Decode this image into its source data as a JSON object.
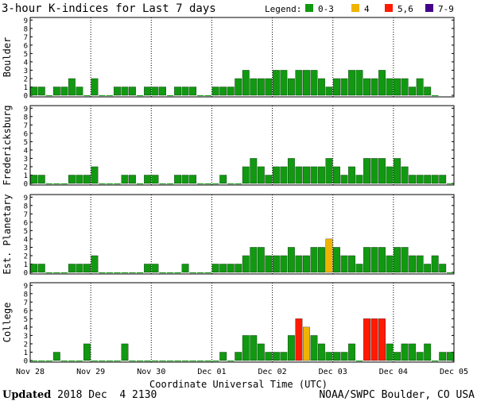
{
  "title": "3-hour K-indices for Last 7 days",
  "legend": {
    "label": "Legend:",
    "items": [
      {
        "label": "0-3",
        "color": "#119911"
      },
      {
        "label": "4",
        "color": "#f0b400"
      },
      {
        "label": "5,6",
        "color": "#ff1a00"
      },
      {
        "label": "7-9",
        "color": "#440088"
      }
    ]
  },
  "footer": {
    "updated_label": "Updated",
    "updated_value": "2018 Dec  4 2130",
    "source": "NOAA/SWPC Boulder, CO USA"
  },
  "chart_data": {
    "type": "bar",
    "xlabel": "Coordinate Universal Time (UTC)",
    "x_ticks": [
      "Nov 28",
      "Nov 29",
      "Nov 30",
      "Dec 01",
      "Dec 02",
      "Dec 03",
      "Dec 04",
      "Dec 05"
    ],
    "y_ticks": [
      "0",
      "1",
      "2",
      "3",
      "4",
      "5",
      "6",
      "7",
      "8",
      "9"
    ],
    "ylim": [
      0,
      9
    ],
    "intervals_per_day": 8,
    "days": 7,
    "panels": [
      {
        "name": "Boulder",
        "values": [
          1,
          1,
          0,
          1,
          1,
          2,
          1,
          0,
          2,
          0,
          0,
          1,
          1,
          1,
          0,
          1,
          1,
          1,
          0,
          1,
          1,
          1,
          0,
          0,
          1,
          1,
          1,
          2,
          3,
          2,
          2,
          2,
          3,
          3,
          2,
          3,
          3,
          3,
          2,
          1,
          2,
          2,
          3,
          3,
          2,
          2,
          3,
          2,
          2,
          2,
          1,
          2,
          1,
          0
        ]
      },
      {
        "name": "Fredericksburg",
        "values": [
          1,
          1,
          0,
          0,
          0,
          1,
          1,
          1,
          2,
          0,
          0,
          0,
          1,
          1,
          0,
          1,
          1,
          0,
          0,
          1,
          1,
          1,
          0,
          0,
          0,
          1,
          0,
          0,
          2,
          3,
          2,
          1,
          2,
          2,
          3,
          2,
          2,
          2,
          2,
          3,
          2,
          1,
          2,
          1,
          3,
          3,
          3,
          2,
          3,
          2,
          1,
          1,
          1,
          1,
          1,
          0
        ]
      },
      {
        "name": "Est. Planetary",
        "values": [
          1,
          1,
          0,
          0,
          0,
          1,
          1,
          1,
          2,
          0,
          0,
          0,
          0,
          0,
          0,
          1,
          1,
          0,
          0,
          0,
          1,
          0,
          0,
          0,
          1,
          1,
          1,
          1,
          2,
          3,
          3,
          2,
          2,
          2,
          3,
          2,
          2,
          3,
          3,
          4,
          3,
          2,
          2,
          1,
          3,
          3,
          3,
          2,
          3,
          3,
          2,
          2,
          1,
          2,
          1,
          0
        ]
      },
      {
        "name": "College",
        "values": [
          0,
          0,
          0,
          1,
          0,
          0,
          0,
          2,
          0,
          0,
          0,
          0,
          2,
          0,
          0,
          0,
          0,
          0,
          0,
          0,
          0,
          0,
          0,
          0,
          0,
          1,
          0,
          1,
          3,
          3,
          2,
          1,
          1,
          1,
          3,
          5,
          4,
          3,
          2,
          1,
          1,
          1,
          2,
          0,
          5,
          5,
          5,
          2,
          1,
          2,
          2,
          1,
          2,
          0,
          1,
          1
        ]
      }
    ]
  }
}
